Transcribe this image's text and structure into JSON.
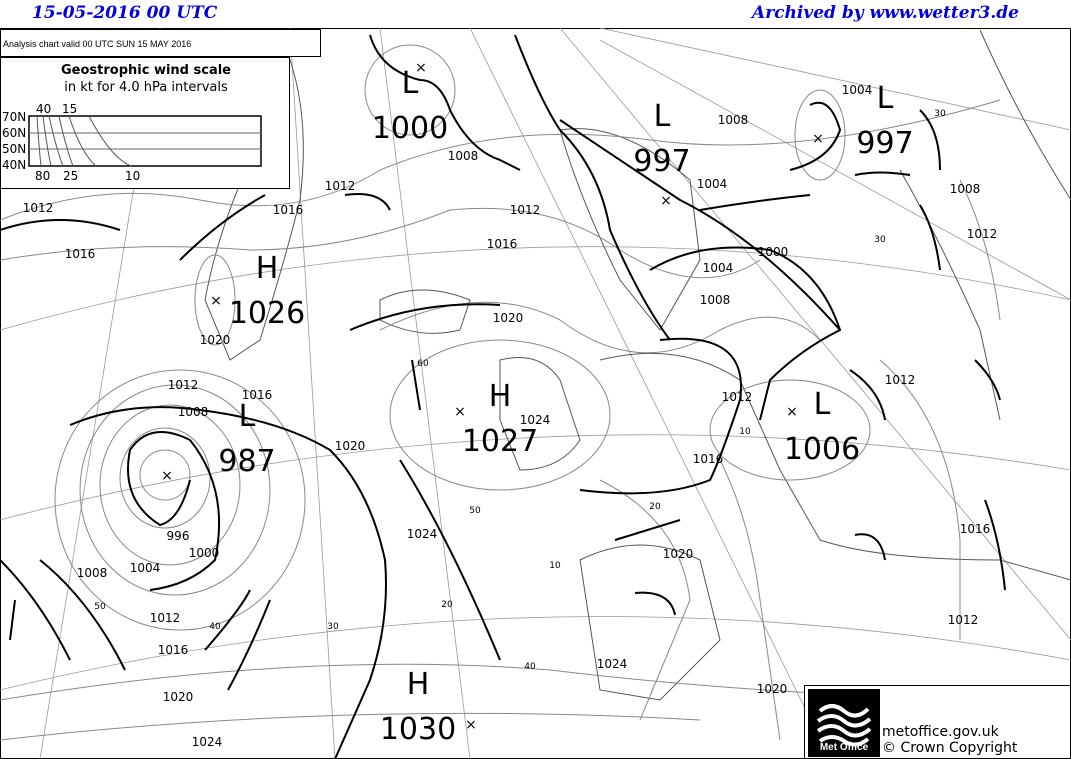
{
  "header": {
    "date": "15-05-2016  00 UTC",
    "archive": "Archived by www.wetter3.de"
  },
  "chart": {
    "validity": "Analysis chart  valid 00 UTC SUN 15  MAY 2016"
  },
  "wind_scale": {
    "title": "Geostrophic wind scale",
    "subtitle": "in kt for 4.0 hPa intervals",
    "lat_labels": [
      "70N",
      "60N",
      "50N",
      "40N"
    ],
    "top_labels": [
      "40",
      "15"
    ],
    "bottom_labels": [
      "80",
      "25",
      "10"
    ]
  },
  "pressure_centres": [
    {
      "type": "L",
      "value": "1000"
    },
    {
      "type": "L",
      "value": "997"
    },
    {
      "type": "L",
      "value": "997"
    },
    {
      "type": "H",
      "value": "1026"
    },
    {
      "type": "L",
      "value": "987"
    },
    {
      "type": "H",
      "value": "1027"
    },
    {
      "type": "L",
      "value": "1006"
    },
    {
      "type": "H",
      "value": "1030"
    }
  ],
  "isobar_labels": [
    "1012",
    "1016",
    "1016",
    "1012",
    "1008",
    "1012",
    "1016",
    "1020",
    "1020",
    "1012",
    "1008",
    "1016",
    "1020",
    "1024",
    "996",
    "1000",
    "1004",
    "1008",
    "1012",
    "1016",
    "1020",
    "1024",
    "1024",
    "1020",
    "1024",
    "1020",
    "1012",
    "1016",
    "1012",
    "1012",
    "1016",
    "1008",
    "1004",
    "1000",
    "1008",
    "1004",
    "1004",
    "1008",
    "1012"
  ],
  "latitude_labels": [
    "60",
    "50",
    "10",
    "20",
    "40",
    "30",
    "40",
    "50",
    "20",
    "10",
    "30",
    "30"
  ],
  "footer": {
    "logo": "Met Office",
    "site": "metoffice.gov.uk",
    "copyright": "© Crown Copyright"
  }
}
